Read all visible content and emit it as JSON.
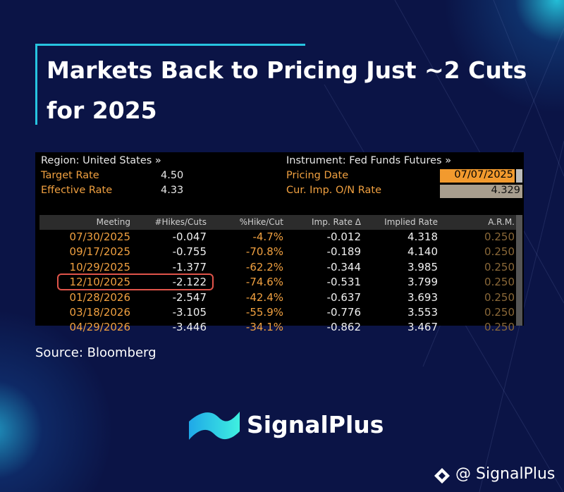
{
  "title": [
    "Markets Back to Pricing Just ~2 Cuts",
    "for 2025"
  ],
  "terminal": {
    "region": "Region: United States »",
    "target_rate": {
      "label": "Target Rate",
      "value": "4.50"
    },
    "effective_rate": {
      "label": "Effective Rate",
      "value": "4.33"
    },
    "instrument": "Instrument: Fed Funds Futures »",
    "pricing_date": {
      "label": "Pricing Date",
      "value": "07/07/2025"
    },
    "on_rate": {
      "label": "Cur. Imp. O/N Rate",
      "value": "4.329"
    },
    "columns": [
      "Meeting",
      "#Hikes/Cuts",
      "%Hike/Cut",
      "Imp. Rate Δ",
      "Implied Rate",
      "A.R.M."
    ],
    "rows": [
      [
        "07/30/2025",
        "-0.047",
        "-4.7%",
        "-0.012",
        "4.318",
        "0.250"
      ],
      [
        "09/17/2025",
        "-0.755",
        "-70.8%",
        "-0.189",
        "4.140",
        "0.250"
      ],
      [
        "10/29/2025",
        "-1.377",
        "-62.2%",
        "-0.344",
        "3.985",
        "0.250"
      ],
      [
        "12/10/2025",
        "-2.122",
        "-74.6%",
        "-0.531",
        "3.799",
        "0.250"
      ],
      [
        "01/28/2026",
        "-2.547",
        "-42.4%",
        "-0.637",
        "3.693",
        "0.250"
      ],
      [
        "03/18/2026",
        "-3.105",
        "-55.9%",
        "-0.776",
        "3.553",
        "0.250"
      ],
      [
        "04/29/2026",
        "-3.446",
        "-34.1%",
        "-0.862",
        "3.467",
        "0.250"
      ]
    ]
  },
  "source": "Source: Bloomberg",
  "brand": "SignalPlus",
  "handle": "@ SignalPlus"
}
